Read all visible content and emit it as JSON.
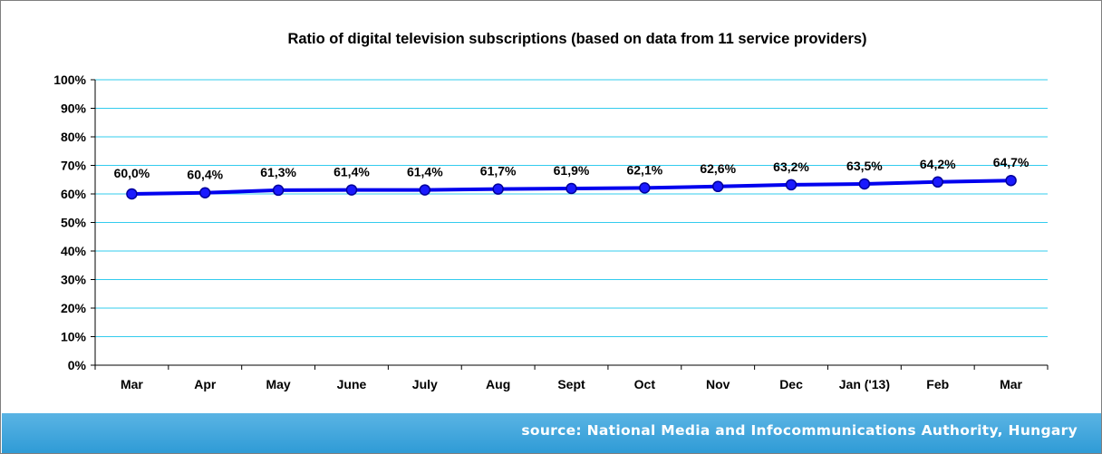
{
  "chart_data": {
    "type": "line",
    "title": "Ratio of digital television subscriptions (based on data from 11 service providers)",
    "categories": [
      "Mar",
      "Apr",
      "May",
      "June",
      "July",
      "Aug",
      "Sept",
      "Oct",
      "Nov",
      "Dec",
      "Jan ('13)",
      "Feb",
      "Mar"
    ],
    "series": [
      {
        "values": [
          60.0,
          60.4,
          61.3,
          61.4,
          61.4,
          61.7,
          61.9,
          62.1,
          62.6,
          63.2,
          63.5,
          64.2,
          64.7
        ],
        "data_labels": [
          "60,0%",
          "60,4%",
          "61,3%",
          "61,4%",
          "61,4%",
          "61,7%",
          "61,9%",
          "62,1%",
          "62,6%",
          "63,2%",
          "63,5%",
          "64,2%",
          "64,7%"
        ]
      }
    ],
    "ylim": [
      0,
      100
    ],
    "y_ticks": [
      "0%",
      "10%",
      "20%",
      "30%",
      "40%",
      "50%",
      "60%",
      "70%",
      "80%",
      "90%",
      "100%"
    ],
    "xlabel": "",
    "ylabel": "",
    "grid": true,
    "legend": "none",
    "line_color": "#0000ee",
    "gridline_color": "#33ccee"
  },
  "footer": {
    "source": "source: National Media and Infocommunications Authority, Hungary",
    "band_color": "#3aa6dd"
  }
}
